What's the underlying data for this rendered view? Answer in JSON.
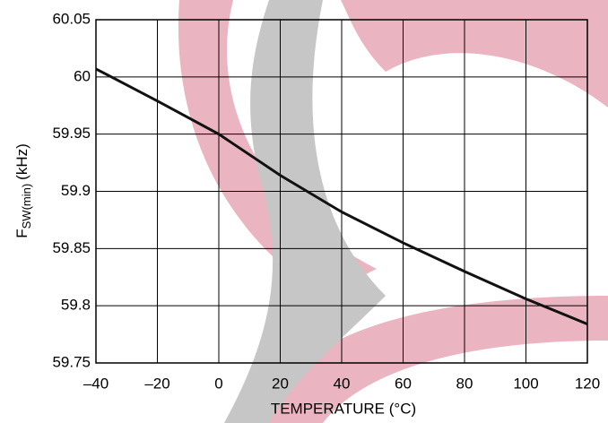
{
  "chart_data": {
    "type": "line",
    "xlabel": "TEMPERATURE (°C)",
    "ylabel": {
      "base": "F",
      "sub": "SW(min)",
      "unit": "(kHz)"
    },
    "x": [
      -40,
      -20,
      0,
      20,
      40,
      60,
      80,
      100,
      120
    ],
    "series": [
      {
        "color": "#111111",
        "values": [
          60.007,
          59.979,
          59.95,
          59.914,
          59.882,
          59.855,
          59.83,
          59.806,
          59.784
        ]
      }
    ],
    "xlim": [
      -40,
      120
    ],
    "ylim": [
      59.75,
      60.05
    ],
    "xticks": [
      {
        "value": -40,
        "label": "–40"
      },
      {
        "value": -20,
        "label": "–20"
      },
      0,
      20,
      40,
      60,
      80,
      100,
      120
    ],
    "yticks": [
      59.75,
      59.8,
      59.85,
      59.9,
      59.95,
      60,
      60.05
    ],
    "grid": true
  }
}
